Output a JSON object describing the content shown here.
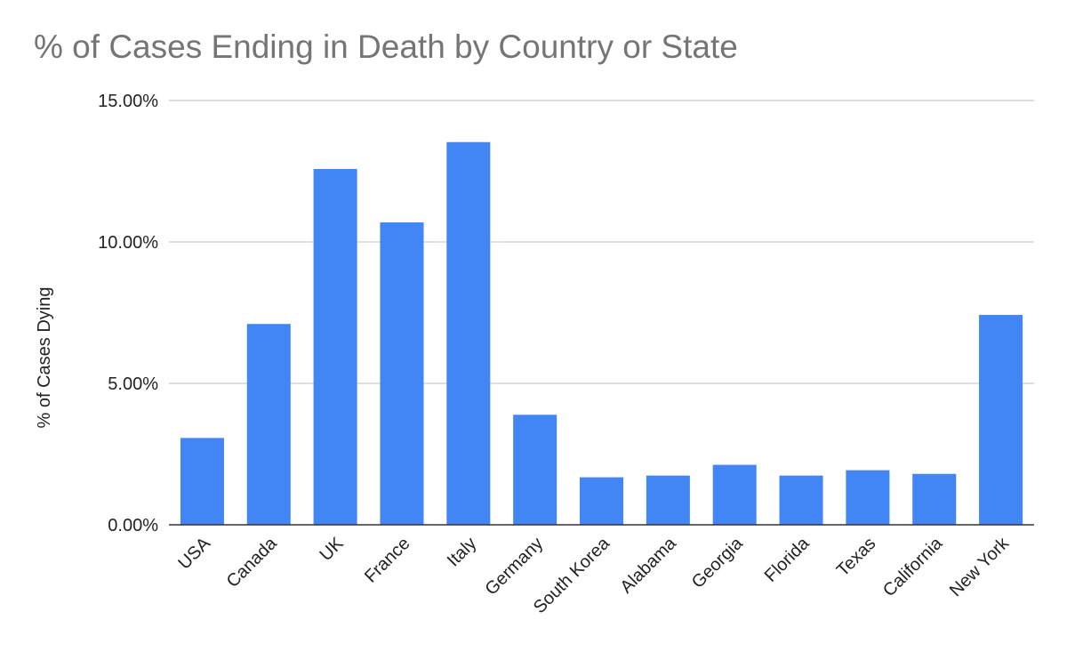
{
  "chart_data": {
    "type": "bar",
    "title": "% of Cases Ending in Death by Country or State",
    "xlabel": "",
    "ylabel": "% of Cases Dying",
    "categories": [
      "USA",
      "Canada",
      "UK",
      "France",
      "Italy",
      "Germany",
      "South Korea",
      "Alabama",
      "Georgia",
      "Florida",
      "Texas",
      "California",
      "New York"
    ],
    "series": [
      {
        "values": [
          3.07,
          7.1,
          12.58,
          10.69,
          13.53,
          3.89,
          1.68,
          1.74,
          2.12,
          1.74,
          1.93,
          1.8,
          7.42
        ]
      }
    ],
    "ylim": [
      0,
      15
    ],
    "yticks": [
      0,
      5,
      10,
      15
    ],
    "ytick_labels": [
      "0.00%",
      "5.00%",
      "10.00%",
      "15.00%"
    ],
    "grid": true,
    "legend": "none",
    "bar_color": "#4285f4",
    "grid_color": "#cccccc",
    "axis_color": "#333333",
    "title_color": "#757575",
    "label_color": "#222222"
  }
}
